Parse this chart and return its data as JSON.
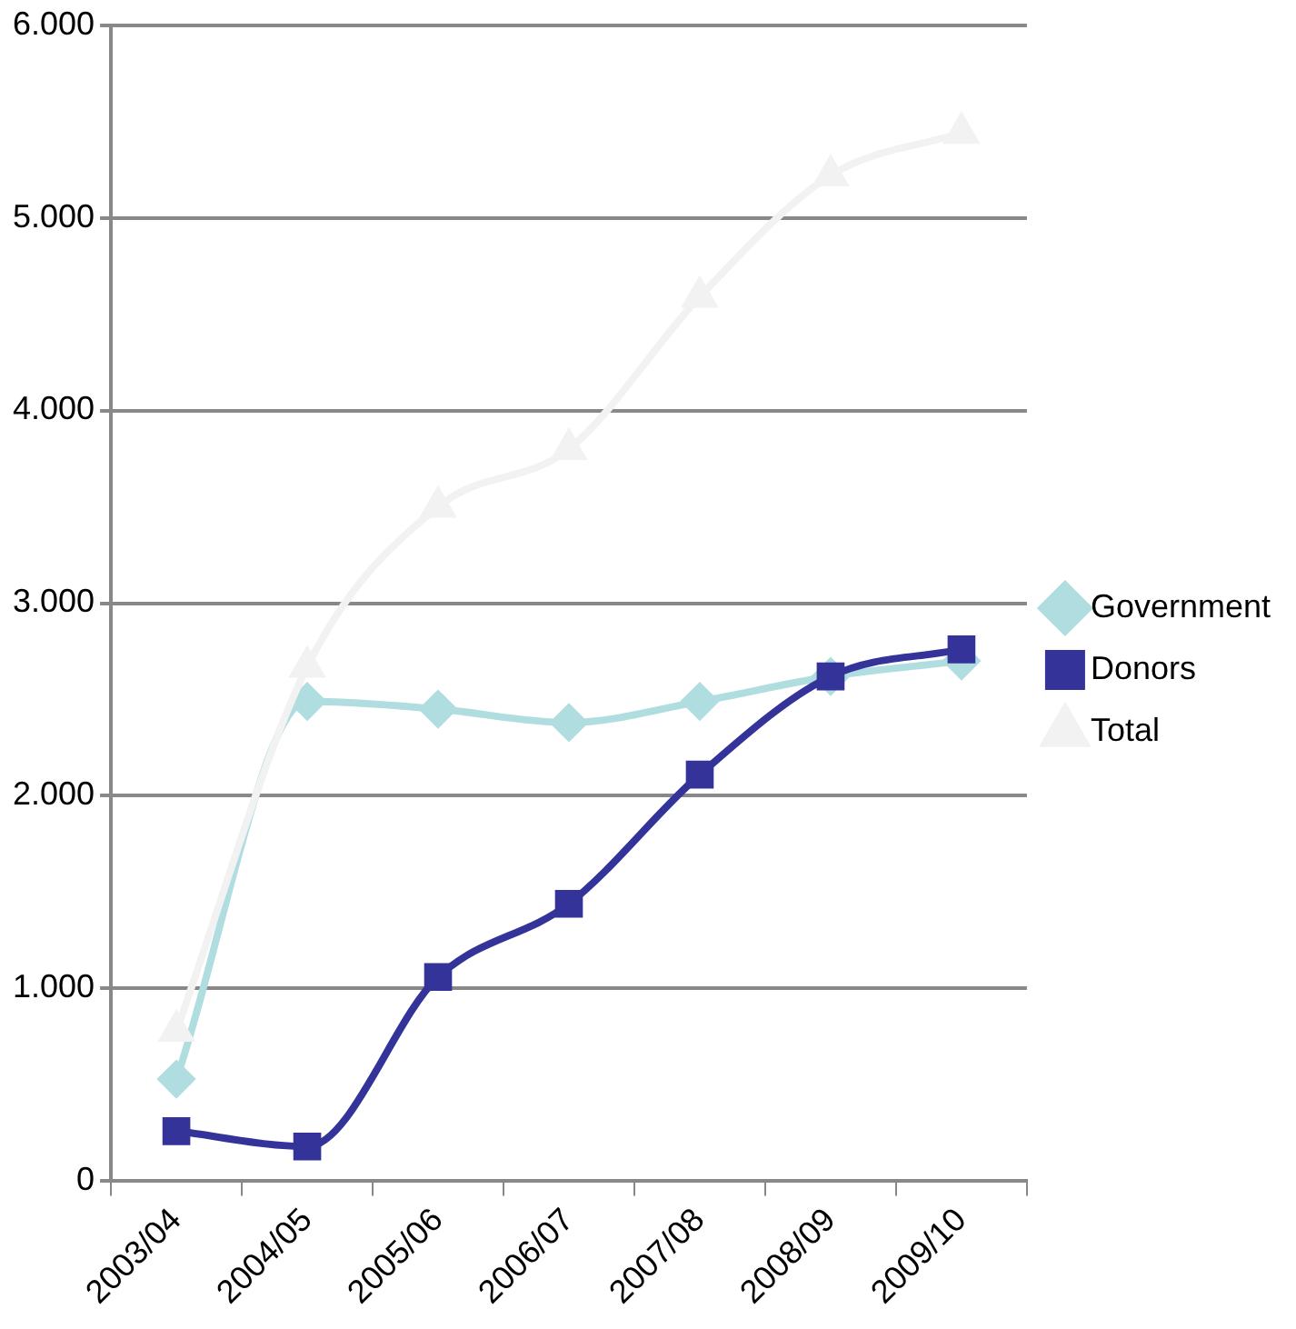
{
  "chart_data": {
    "type": "line",
    "categories": [
      "2003/04",
      "2004/05",
      "2005/06",
      "2006/07",
      "2007/08",
      "2008/09",
      "2009/10"
    ],
    "series": [
      {
        "name": "Government",
        "color": "#b0dde0",
        "marker": "diamond",
        "values": [
          530,
          2490,
          2450,
          2380,
          2490,
          2620,
          2700
        ]
      },
      {
        "name": "Donors",
        "color": "#333399",
        "marker": "square",
        "values": [
          260,
          180,
          1060,
          1440,
          2110,
          2620,
          2760
        ]
      },
      {
        "name": "Total",
        "color": "#f2f2f2",
        "marker": "triangle",
        "values": [
          780,
          2670,
          3500,
          3800,
          4590,
          5220,
          5440
        ]
      }
    ],
    "ylim": [
      0,
      6000
    ],
    "yticks": [
      {
        "value": 0,
        "label": "0"
      },
      {
        "value": 1000,
        "label": "1.000"
      },
      {
        "value": 2000,
        "label": "2.000"
      },
      {
        "value": 3000,
        "label": "3.000"
      },
      {
        "value": 4000,
        "label": "4.000"
      },
      {
        "value": 5000,
        "label": "5.000"
      },
      {
        "value": 6000,
        "label": "6.000"
      }
    ],
    "grid": "y",
    "legend": "right",
    "line_style": "solid"
  }
}
